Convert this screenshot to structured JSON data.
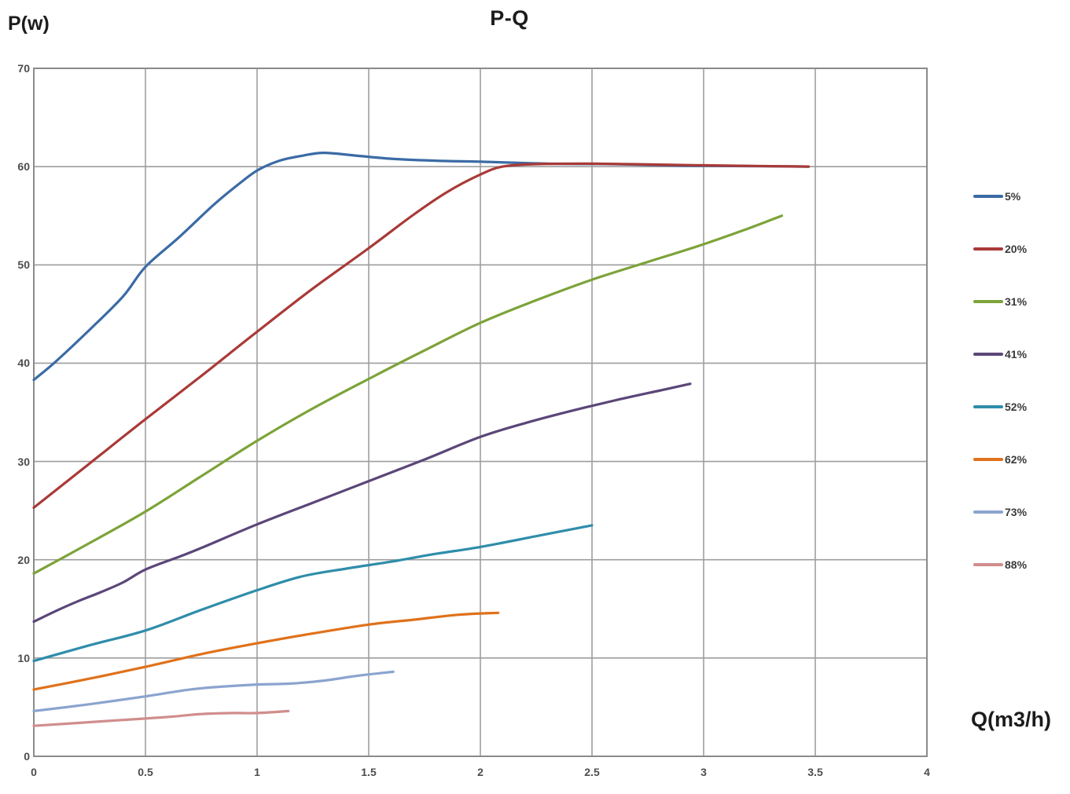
{
  "chart_data": {
    "type": "line",
    "title": "P-Q",
    "xlabel": "Q(m3/h)",
    "ylabel": "P(w)",
    "xlim": [
      0,
      4
    ],
    "ylim": [
      0,
      70
    ],
    "grid": true,
    "legend_position": "right",
    "x_ticks": [
      {
        "label": "0",
        "value": 0
      },
      {
        "label": "0.5",
        "value": 0.5
      },
      {
        "label": "1",
        "value": 1
      },
      {
        "label": "1.5",
        "value": 1.5
      },
      {
        "label": "2",
        "value": 2
      },
      {
        "label": "2.5",
        "value": 2.5
      },
      {
        "label": "3",
        "value": 3
      },
      {
        "label": "3.5",
        "value": 3.5
      },
      {
        "label": "4",
        "value": 4
      }
    ],
    "y_ticks": [
      {
        "label": "0",
        "value": 0
      },
      {
        "label": "10",
        "value": 10
      },
      {
        "label": "20",
        "value": 20
      },
      {
        "label": "30",
        "value": 30
      },
      {
        "label": "40",
        "value": 40
      },
      {
        "label": "50",
        "value": 50
      },
      {
        "label": "60",
        "value": 60
      },
      {
        "label": "70",
        "value": 70
      }
    ],
    "series": [
      {
        "name": "5%",
        "color": "#3B6BA5",
        "points": [
          [
            0,
            38.3
          ],
          [
            0.1,
            40.2
          ],
          [
            0.25,
            43.4
          ],
          [
            0.4,
            46.8
          ],
          [
            0.5,
            49.8
          ],
          [
            0.65,
            52.8
          ],
          [
            0.8,
            56.0
          ],
          [
            0.9,
            57.9
          ],
          [
            1.0,
            59.6
          ],
          [
            1.1,
            60.6
          ],
          [
            1.2,
            61.1
          ],
          [
            1.3,
            61.4
          ],
          [
            1.45,
            61.1
          ],
          [
            1.6,
            60.8
          ],
          [
            1.8,
            60.6
          ],
          [
            2.0,
            60.5
          ],
          [
            2.3,
            60.3
          ],
          [
            2.6,
            60.25
          ],
          [
            2.9,
            60.1
          ],
          [
            3.2,
            60.05
          ],
          [
            3.47,
            60.0
          ]
        ]
      },
      {
        "name": "20%",
        "color": "#A93A38",
        "points": [
          [
            0,
            25.3
          ],
          [
            0.25,
            29.8
          ],
          [
            0.5,
            34.3
          ],
          [
            0.75,
            38.7
          ],
          [
            1.0,
            43.2
          ],
          [
            1.25,
            47.6
          ],
          [
            1.5,
            51.7
          ],
          [
            1.7,
            55.1
          ],
          [
            1.85,
            57.4
          ],
          [
            2.0,
            59.2
          ],
          [
            2.1,
            60.0
          ],
          [
            2.25,
            60.25
          ],
          [
            2.5,
            60.3
          ],
          [
            2.8,
            60.2
          ],
          [
            3.1,
            60.1
          ],
          [
            3.47,
            60.0
          ]
        ]
      },
      {
        "name": "31%",
        "color": "#7CA339",
        "points": [
          [
            0,
            18.6
          ],
          [
            0.25,
            21.7
          ],
          [
            0.5,
            24.9
          ],
          [
            0.75,
            28.5
          ],
          [
            1.0,
            32.1
          ],
          [
            1.25,
            35.4
          ],
          [
            1.5,
            38.4
          ],
          [
            1.75,
            41.3
          ],
          [
            2.0,
            44.1
          ],
          [
            2.25,
            46.4
          ],
          [
            2.5,
            48.5
          ],
          [
            2.75,
            50.3
          ],
          [
            3.0,
            52.1
          ],
          [
            3.2,
            53.7
          ],
          [
            3.35,
            55.0
          ]
        ]
      },
      {
        "name": "41%",
        "color": "#5B4678",
        "points": [
          [
            0,
            13.7
          ],
          [
            0.1,
            14.8
          ],
          [
            0.2,
            15.8
          ],
          [
            0.3,
            16.7
          ],
          [
            0.4,
            17.7
          ],
          [
            0.5,
            19.0
          ],
          [
            0.65,
            20.3
          ],
          [
            0.75,
            21.2
          ],
          [
            1.0,
            23.6
          ],
          [
            1.25,
            25.8
          ],
          [
            1.5,
            28.0
          ],
          [
            1.75,
            30.2
          ],
          [
            2.0,
            32.5
          ],
          [
            2.2,
            33.9
          ],
          [
            2.4,
            35.1
          ],
          [
            2.6,
            36.2
          ],
          [
            2.8,
            37.2
          ],
          [
            2.94,
            37.9
          ]
        ]
      },
      {
        "name": "52%",
        "color": "#2F8DAA",
        "points": [
          [
            0,
            9.7
          ],
          [
            0.25,
            11.3
          ],
          [
            0.5,
            12.8
          ],
          [
            0.75,
            14.9
          ],
          [
            1.0,
            16.9
          ],
          [
            1.2,
            18.3
          ],
          [
            1.4,
            19.1
          ],
          [
            1.6,
            19.8
          ],
          [
            1.8,
            20.6
          ],
          [
            2.0,
            21.3
          ],
          [
            2.25,
            22.4
          ],
          [
            2.5,
            23.5
          ]
        ]
      },
      {
        "name": "62%",
        "color": "#E0711A",
        "points": [
          [
            0,
            6.8
          ],
          [
            0.25,
            7.9
          ],
          [
            0.5,
            9.1
          ],
          [
            0.75,
            10.4
          ],
          [
            1.0,
            11.5
          ],
          [
            1.25,
            12.5
          ],
          [
            1.5,
            13.4
          ],
          [
            1.7,
            13.9
          ],
          [
            1.9,
            14.4
          ],
          [
            2.08,
            14.6
          ]
        ]
      },
      {
        "name": "73%",
        "color": "#8BA4CF",
        "points": [
          [
            0,
            4.6
          ],
          [
            0.25,
            5.3
          ],
          [
            0.5,
            6.1
          ],
          [
            0.7,
            6.8
          ],
          [
            0.85,
            7.1
          ],
          [
            1.0,
            7.3
          ],
          [
            1.15,
            7.4
          ],
          [
            1.3,
            7.7
          ],
          [
            1.45,
            8.2
          ],
          [
            1.61,
            8.6
          ]
        ]
      },
      {
        "name": "88%",
        "color": "#D18D8D",
        "points": [
          [
            0,
            3.1
          ],
          [
            0.2,
            3.4
          ],
          [
            0.4,
            3.7
          ],
          [
            0.6,
            4.0
          ],
          [
            0.75,
            4.3
          ],
          [
            0.9,
            4.4
          ],
          [
            1.0,
            4.4
          ],
          [
            1.14,
            4.6
          ]
        ]
      }
    ]
  },
  "colors": {
    "gridline": "#9E9E9E",
    "axis_border": "#8A8A8A",
    "tick_label": "#4D4D4D",
    "text": "#1C1C1C"
  }
}
